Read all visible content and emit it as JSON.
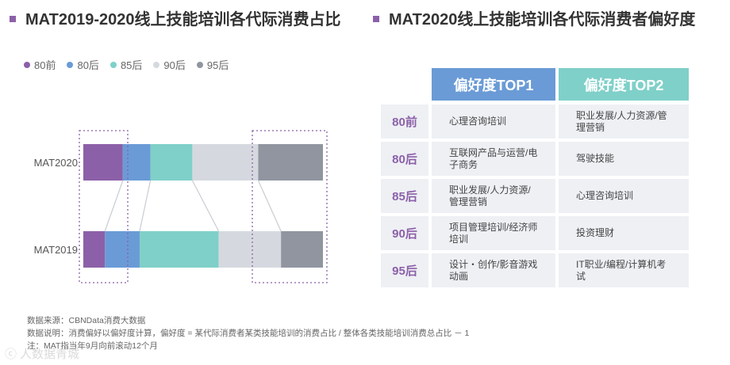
{
  "left_title": "MAT2019-2020线上技能培训各代际消费占比",
  "right_title": "MAT2020线上技能培训各代际消费者偏好度",
  "legend": [
    {
      "label": "80前",
      "color": "#8c60a8"
    },
    {
      "label": "80后",
      "color": "#6a9bd6"
    },
    {
      "label": "85后",
      "color": "#7fd0c9"
    },
    {
      "label": "90后",
      "color": "#d5d9df"
    },
    {
      "label": "95后",
      "color": "#9095a0"
    }
  ],
  "chart_data": {
    "type": "stacked-bar-horizontal",
    "title": "MAT2019-2020线上技能培训各代际消费占比",
    "categories": [
      "MAT2020",
      "MAT2019"
    ],
    "series": [
      {
        "name": "80前",
        "color": "#8c60a8",
        "values": [
          16.5,
          9
        ]
      },
      {
        "name": "80后",
        "color": "#6a9bd6",
        "values": [
          11.5,
          14.5
        ]
      },
      {
        "name": "85后",
        "color": "#7fd0c9",
        "values": [
          17.5,
          33
        ]
      },
      {
        "name": "90后",
        "color": "#d5d9df",
        "values": [
          27.5,
          26
        ]
      },
      {
        "name": "95后",
        "color": "#9095a0",
        "values": [
          27,
          17.5
        ]
      }
    ],
    "xlim": [
      0,
      100
    ],
    "unit": "%"
  },
  "table": {
    "headers": [
      "偏好度TOP1",
      "偏好度TOP2"
    ],
    "header_colors": [
      "#6a9bd6",
      "#7fd0c9"
    ],
    "rows": [
      {
        "label": "80前",
        "top1": "心理咨询培训",
        "top2": "职业发展/人力资源/管理营销"
      },
      {
        "label": "80后",
        "top1": "互联网产品与运营/电子商务",
        "top2": "驾驶技能"
      },
      {
        "label": "85后",
        "top1": "职业发展/人力资源/管理营销",
        "top2": "心理咨询培训"
      },
      {
        "label": "90后",
        "top1": "项目管理培训/经济师培训",
        "top2": "投资理财"
      },
      {
        "label": "95后",
        "top1": "设计・创作/影音游戏动画",
        "top2": "IT职业/编程/计算机考试"
      }
    ]
  },
  "footnotes": [
    "数据来源：CBNData消费大数据",
    "数据说明：消费偏好以偏好度计算，偏好度 = 某代际消费者某类技能培训的消费占比 / 整体各类技能培训消费总占比 － 1",
    "注：MAT指当年9月向前滚动12个月"
  ],
  "watermark": "人数据青城"
}
